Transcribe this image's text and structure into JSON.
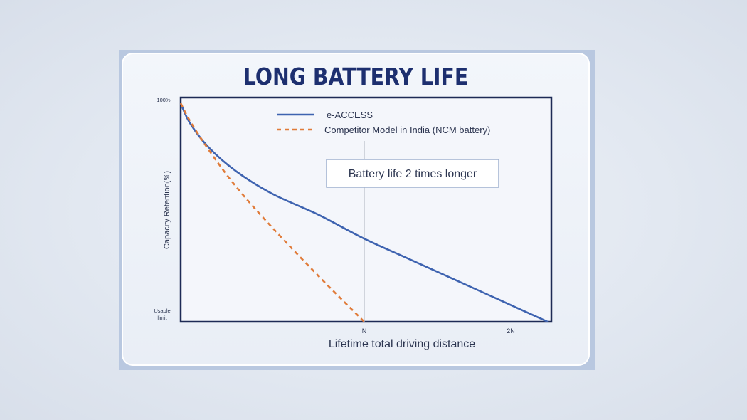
{
  "chart_data": {
    "type": "line",
    "title": "LONG BATTERY LIFE",
    "xlabel": "Lifetime total driving distance",
    "ylabel": "Capacity Retention(%)",
    "x_ticks": [
      "N",
      "2N"
    ],
    "y_ticks": [
      "100%",
      "Usable limit"
    ],
    "xlim": [
      0,
      2
    ],
    "ylim": [
      0,
      1
    ],
    "legend_position": "top-center",
    "annotation": "Battery life 2 times longer",
    "grid": false,
    "series": [
      {
        "name": "e-ACCESS",
        "style": "solid",
        "color": "#3e63b0",
        "x": [
          0,
          0.05,
          0.15,
          0.3,
          0.5,
          0.75,
          1.0,
          1.25,
          1.5,
          1.75,
          2.0
        ],
        "y": [
          1.0,
          0.91,
          0.8,
          0.69,
          0.585,
          0.49,
          0.38,
          0.285,
          0.19,
          0.095,
          0.0
        ]
      },
      {
        "name": "Competitor Model in India (NCM battery)",
        "style": "dashed",
        "color": "#e07b39",
        "x": [
          0,
          0.05,
          0.15,
          0.3,
          0.5,
          0.75,
          1.0
        ],
        "y": [
          1.0,
          0.92,
          0.79,
          0.62,
          0.43,
          0.21,
          0.0
        ]
      }
    ]
  }
}
